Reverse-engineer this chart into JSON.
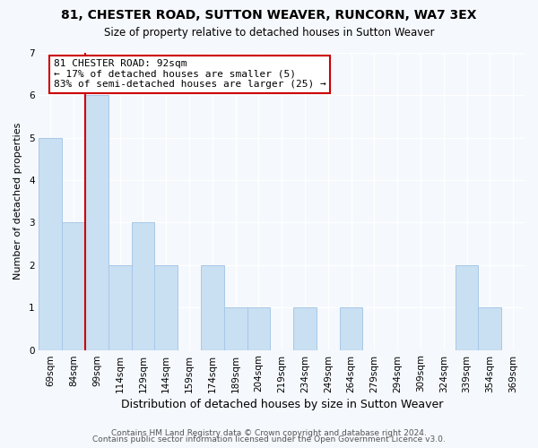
{
  "title": "81, CHESTER ROAD, SUTTON WEAVER, RUNCORN, WA7 3EX",
  "subtitle": "Size of property relative to detached houses in Sutton Weaver",
  "xlabel": "Distribution of detached houses by size in Sutton Weaver",
  "ylabel": "Number of detached properties",
  "categories": [
    "69sqm",
    "84sqm",
    "99sqm",
    "114sqm",
    "129sqm",
    "144sqm",
    "159sqm",
    "174sqm",
    "189sqm",
    "204sqm",
    "219sqm",
    "234sqm",
    "249sqm",
    "264sqm",
    "279sqm",
    "294sqm",
    "309sqm",
    "324sqm",
    "339sqm",
    "354sqm",
    "369sqm"
  ],
  "values": [
    5,
    3,
    6,
    2,
    3,
    2,
    0,
    2,
    1,
    1,
    0,
    1,
    0,
    1,
    0,
    0,
    0,
    0,
    2,
    1,
    0
  ],
  "bar_color": "#c9dff2",
  "bar_edge_color": "#a8c8e8",
  "red_line_x": 1.5,
  "annotation_line1": "81 CHESTER ROAD: 92sqm",
  "annotation_line2": "← 17% of detached houses are smaller (5)",
  "annotation_line3": "83% of semi-detached houses are larger (25) →",
  "annotation_box_color": "#ffffff",
  "annotation_box_edge": "#cc0000",
  "ylim": [
    0,
    7
  ],
  "footer1": "Contains HM Land Registry data © Crown copyright and database right 2024.",
  "footer2": "Contains public sector information licensed under the Open Government Licence v3.0.",
  "title_fontsize": 10,
  "subtitle_fontsize": 8.5,
  "xlabel_fontsize": 9,
  "ylabel_fontsize": 8,
  "tick_fontsize": 7.5,
  "annotation_fontsize": 8,
  "footer_fontsize": 6.5,
  "background_color": "#f5f8fc"
}
